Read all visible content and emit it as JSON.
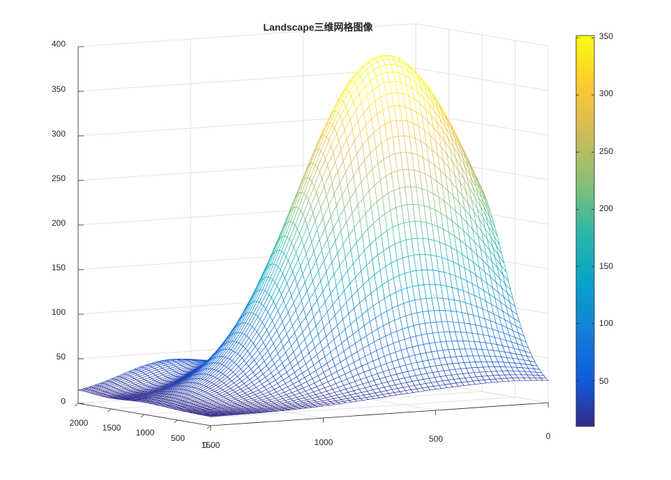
{
  "chart_data": {
    "type": "surface-mesh",
    "title": "Landscape三维网格图像",
    "colormap": "parula",
    "z_ticks": [
      "0",
      "50",
      "100",
      "150",
      "200",
      "250",
      "300",
      "350",
      "400"
    ],
    "z_range": [
      0,
      400
    ],
    "x_ticks_front": [
      "1500",
      "1000",
      "500",
      "0"
    ],
    "y_ticks_left": [
      "2000",
      "1500",
      "1000",
      "500",
      "0"
    ],
    "colorbar": {
      "ticks": [
        "50",
        "100",
        "150",
        "200",
        "250",
        "300",
        "350"
      ],
      "range": [
        10,
        352
      ]
    },
    "surface": {
      "x_range": [
        0,
        1500
      ],
      "y_range": [
        0,
        2000
      ],
      "z_min": 10,
      "z_max": 352,
      "peaks": [
        {
          "x": 1000,
          "y": 1000,
          "z": 350
        },
        {
          "x": 1450,
          "y": 1600,
          "z": 170
        },
        {
          "x": 400,
          "y": 2000,
          "z": 40
        }
      ]
    }
  }
}
